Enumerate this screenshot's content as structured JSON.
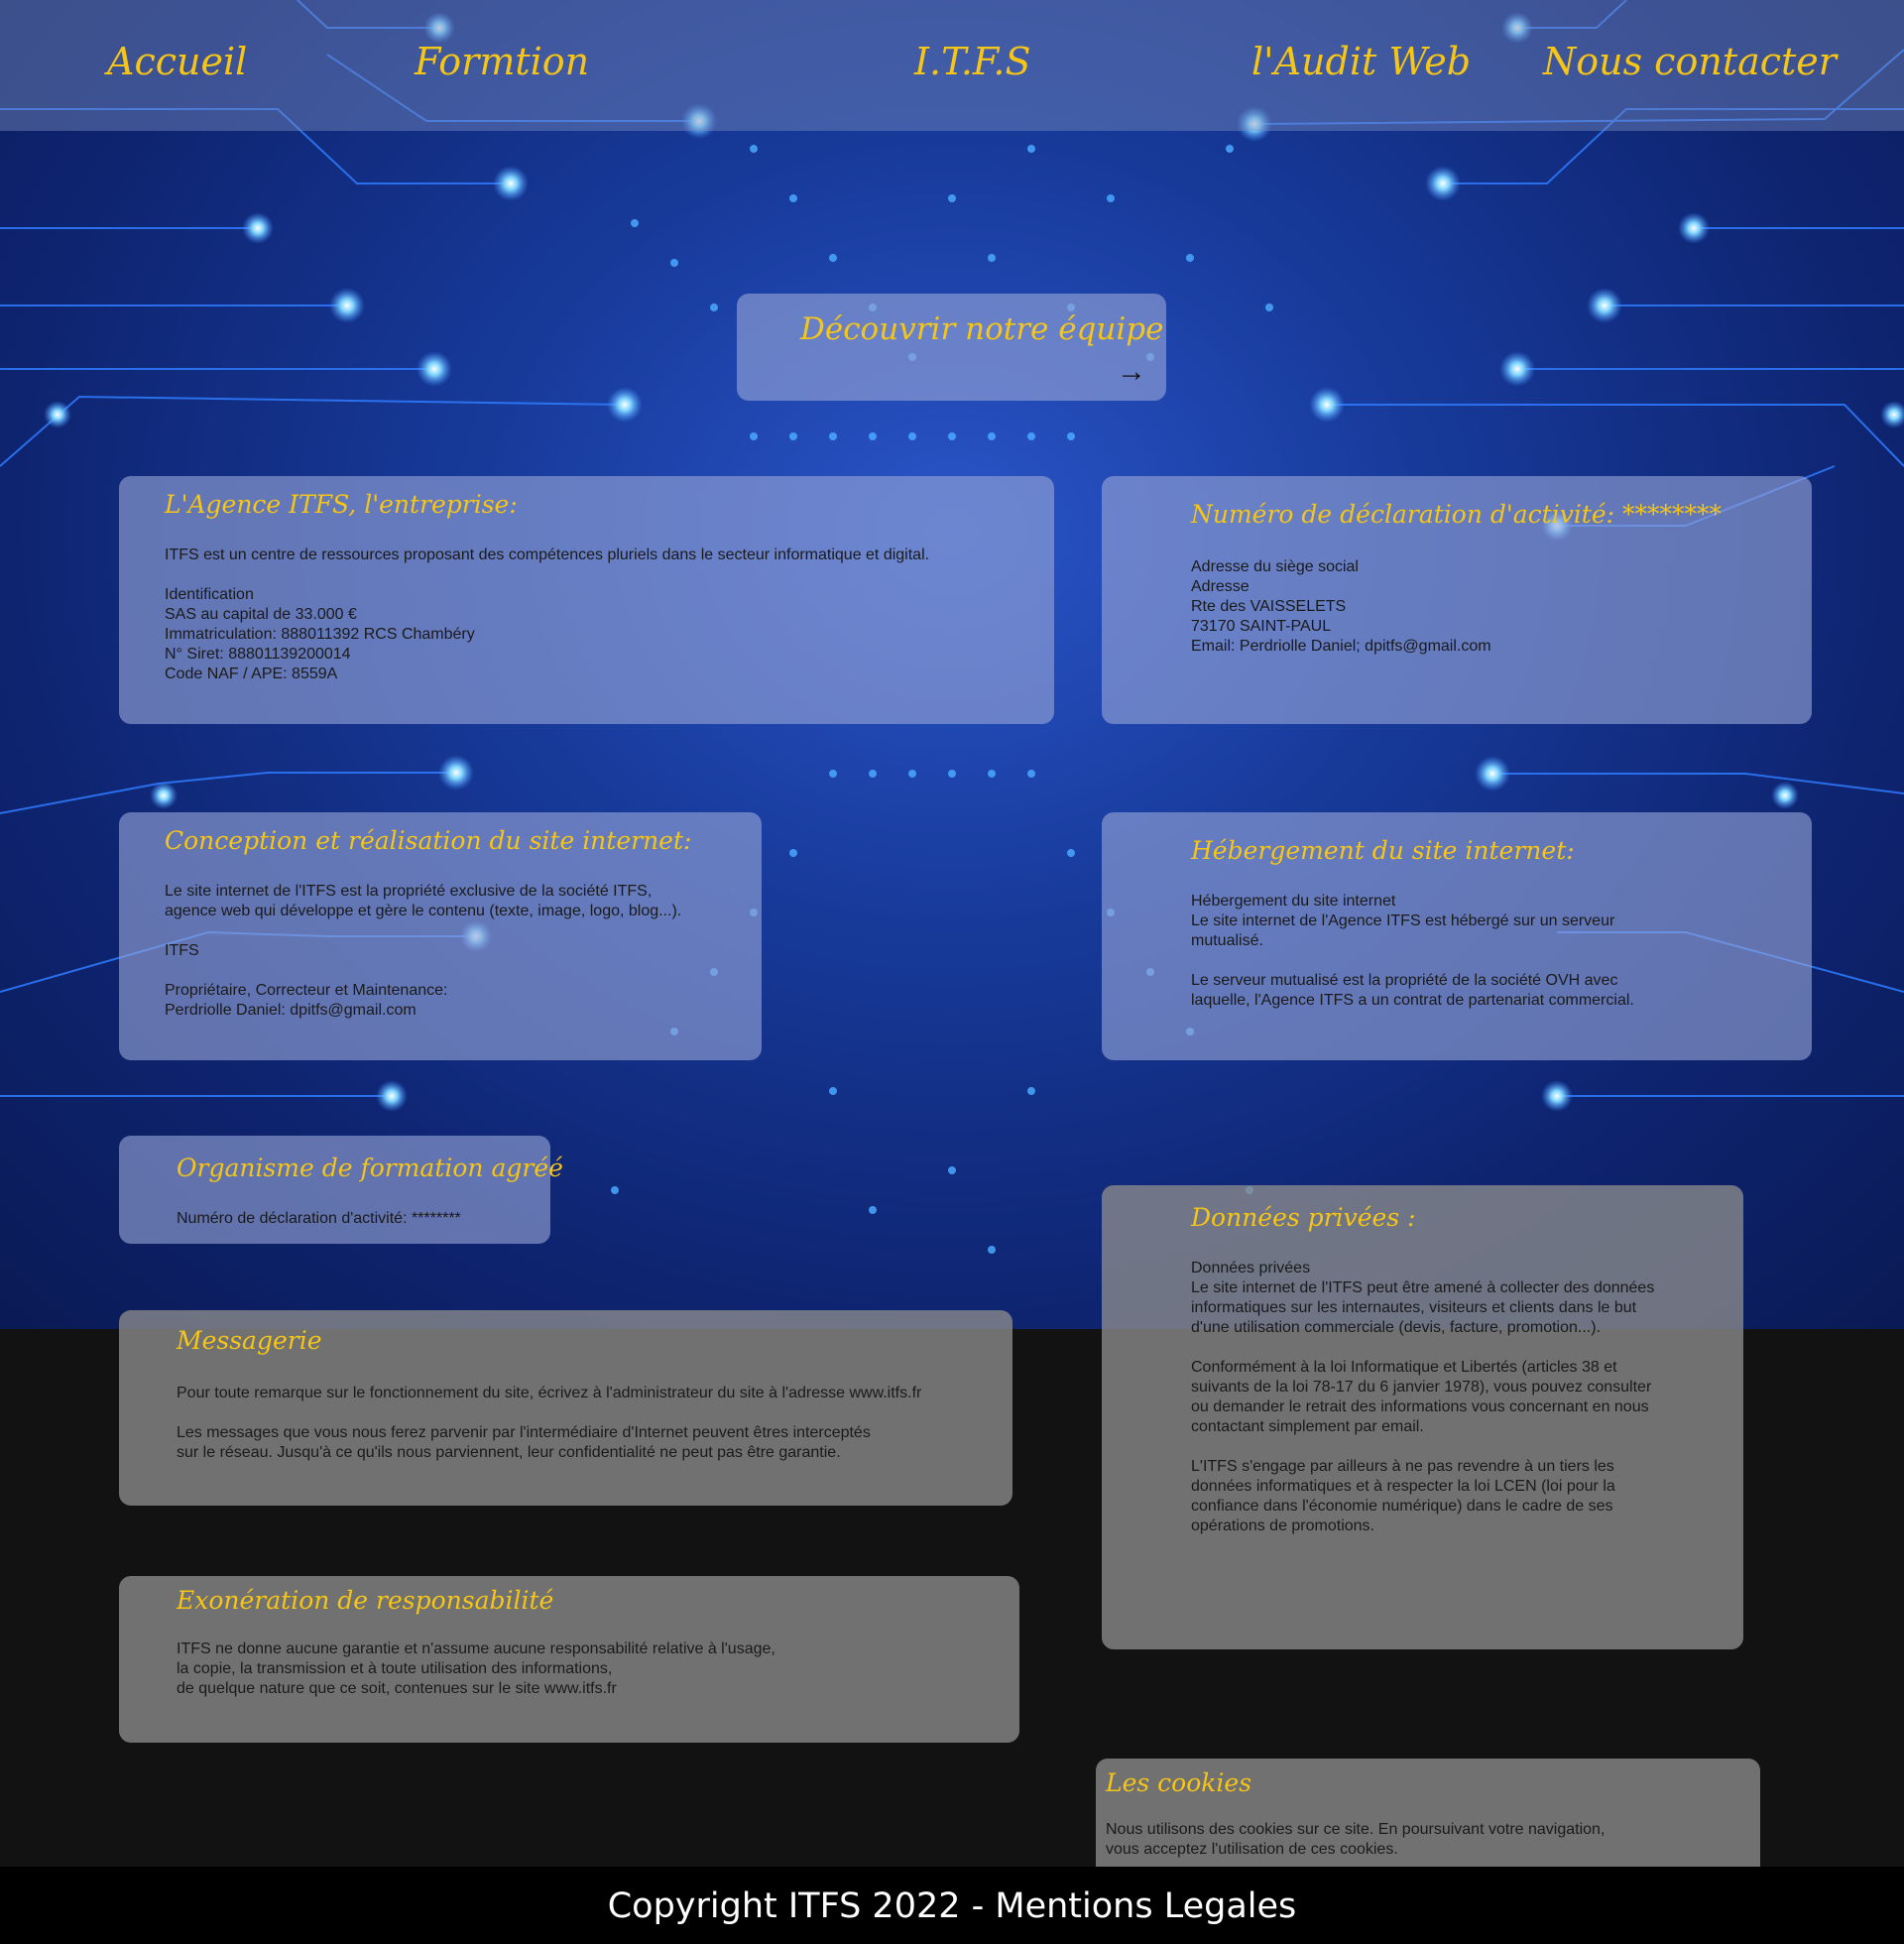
{
  "nav": {
    "home": "Accueil",
    "training": "Formtion",
    "brand": "I.T.F.S",
    "audit": "l'Audit Web",
    "contact": "Nous contacter"
  },
  "discover": {
    "label": "Découvrir notre équipe",
    "arrow": "→"
  },
  "sections": {
    "agency": {
      "title": "L'Agence ITFS, l'entreprise:",
      "body": "ITFS est un centre de ressources proposant des compétences pluriels dans le secteur informatique et digital.\n\nIdentification\nSAS au capital de 33.000 €\nImmatriculation: 888011392 RCS Chambéry\nN° Siret: 88801139200014\nCode NAF / APE: 8559A"
    },
    "declaration": {
      "title": "Numéro de déclaration d'activité: ********",
      "body": "Adresse du siège social\nAdresse\nRte des VAISSELETS\n73170 SAINT-PAUL\nEmail: Perdriolle Daniel; dpitfs@gmail.com"
    },
    "design": {
      "title": "Conception et réalisation du site internet:",
      "body": "Le site internet de l'ITFS est la propriété exclusive de la société ITFS,\nagence web qui développe et gère le contenu (texte, image, logo, blog...).\n\nITFS\n\nPropriétaire, Correcteur et Maintenance:\nPerdriolle Daniel: dpitfs@gmail.com"
    },
    "hosting": {
      "title": "Hébergement du site internet:",
      "body": "Hébergement du site internet\nLe site internet de l'Agence ITFS est hébergé sur un serveur\nmutualisé.\n\nLe serveur mutualisé est la propriété de la société OVH avec\nlaquelle, l'Agence ITFS a un contrat de partenariat commercial."
    },
    "training_org": {
      "title": "Organisme de formation agréé",
      "body": "Numéro de déclaration d'activité: ********"
    },
    "private_data": {
      "title": "Données privées :",
      "body": "Données privées\nLe site internet de l'ITFS peut être amené à collecter des données\ninformatiques sur les internautes, visiteurs et clients dans le but\nd'une utilisation commerciale (devis, facture, promotion...).\n\nConformément à la loi Informatique et Libertés (articles 38 et\nsuivants de la loi 78-17 du 6 janvier 1978), vous pouvez consulter\nou demander le retrait des informations vous concernant en nous\ncontactant simplement par email.\n\nL'ITFS s'engage par ailleurs à ne pas revendre à un tiers les\ndonnées informatiques et à respecter la loi LCEN (loi pour la\nconfiance dans l'économie numérique) dans le cadre de ses\nopérations de promotions."
    },
    "messaging": {
      "title": "Messagerie",
      "body": "Pour toute remarque sur le fonctionnement du site, écrivez à l'administrateur du site à l'adresse www.itfs.fr\n\nLes messages que vous nous ferez parvenir par l'intermédiaire d'Internet peuvent êtres interceptés\nsur le réseau. Jusqu'à ce qu'ils nous parviennent, leur confidentialité ne peut pas être garantie."
    },
    "disclaimer": {
      "title": "Exonération de responsabilité",
      "body": "ITFS ne donne aucune garantie et n'assume aucune responsabilité relative à l'usage,\n la copie, la transmission et à toute utilisation des informations,\nde quelque nature que ce soit, contenues sur le site www.itfs.fr"
    },
    "cookies": {
      "title": "Les cookies",
      "body": "Nous utilisons des cookies sur ce site. En poursuivant votre navigation,\n vous acceptez l'utilisation de ces cookies.\n\nUn cookie est un petit fichier texte envoyé à votre navigateur via le site web consulté.\nGrâce aux cookies, le site web mémorise des informations sur votre visite.\nCela peut faciliter votre visite suivante sur ce site et renforcer l'utilité de ce dernier"
    }
  },
  "footer": {
    "text": "Copyright ITFS 2022 - Mentions Legales"
  },
  "colors": {
    "accent": "#f5c518",
    "background_top": "#173a9a",
    "background_bottom": "#121212"
  }
}
